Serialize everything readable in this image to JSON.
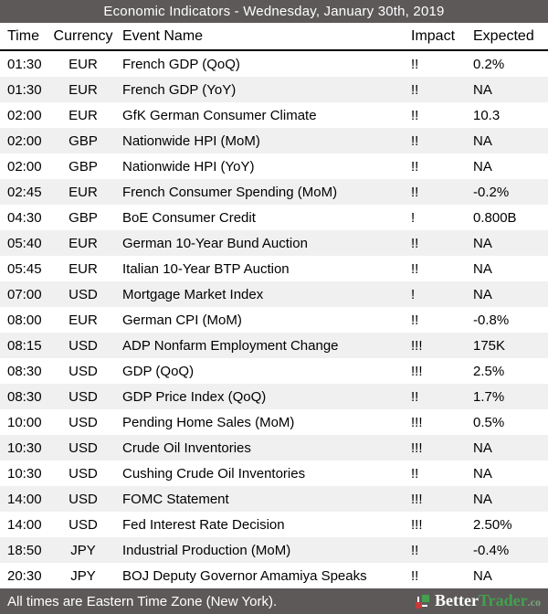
{
  "title": "Economic Indicators - Wednesday, January 30th, 2019",
  "columns": [
    "Time",
    "Currency",
    "Event Name",
    "Impact",
    "Expected"
  ],
  "rows": [
    {
      "time": "01:30",
      "currency": "EUR",
      "event": "French GDP (QoQ)",
      "impact": "!!",
      "expected": "0.2%"
    },
    {
      "time": "01:30",
      "currency": "EUR",
      "event": "French GDP (YoY)",
      "impact": "!!",
      "expected": "NA"
    },
    {
      "time": "02:00",
      "currency": "EUR",
      "event": "GfK German Consumer Climate",
      "impact": "!!",
      "expected": "10.3"
    },
    {
      "time": "02:00",
      "currency": "GBP",
      "event": "Nationwide HPI (MoM)",
      "impact": "!!",
      "expected": "NA"
    },
    {
      "time": "02:00",
      "currency": "GBP",
      "event": "Nationwide HPI (YoY)",
      "impact": "!!",
      "expected": "NA"
    },
    {
      "time": "02:45",
      "currency": "EUR",
      "event": "French Consumer Spending (MoM)",
      "impact": "!!",
      "expected": "-0.2%"
    },
    {
      "time": "04:30",
      "currency": "GBP",
      "event": "BoE Consumer Credit",
      "impact": "!",
      "expected": "0.800B"
    },
    {
      "time": "05:40",
      "currency": "EUR",
      "event": "German 10-Year Bund Auction",
      "impact": "!!",
      "expected": "NA"
    },
    {
      "time": "05:45",
      "currency": "EUR",
      "event": "Italian 10-Year BTP Auction",
      "impact": "!!",
      "expected": "NA"
    },
    {
      "time": "07:00",
      "currency": "USD",
      "event": "Mortgage Market Index",
      "impact": "!",
      "expected": "NA"
    },
    {
      "time": "08:00",
      "currency": "EUR",
      "event": "German CPI (MoM)",
      "impact": "!!",
      "expected": "-0.8%"
    },
    {
      "time": "08:15",
      "currency": "USD",
      "event": "ADP Nonfarm Employment Change",
      "impact": "!!!",
      "expected": "175K"
    },
    {
      "time": "08:30",
      "currency": "USD",
      "event": "GDP (QoQ)",
      "impact": "!!!",
      "expected": "2.5%"
    },
    {
      "time": "08:30",
      "currency": "USD",
      "event": "GDP Price Index (QoQ)",
      "impact": "!!",
      "expected": "1.7%"
    },
    {
      "time": "10:00",
      "currency": "USD",
      "event": "Pending Home Sales (MoM)",
      "impact": "!!!",
      "expected": "0.5%"
    },
    {
      "time": "10:30",
      "currency": "USD",
      "event": "Crude Oil Inventories",
      "impact": "!!!",
      "expected": "NA"
    },
    {
      "time": "10:30",
      "currency": "USD",
      "event": "Cushing Crude Oil Inventories",
      "impact": "!!",
      "expected": "NA"
    },
    {
      "time": "14:00",
      "currency": "USD",
      "event": "FOMC Statement",
      "impact": "!!!",
      "expected": "NA"
    },
    {
      "time": "14:00",
      "currency": "USD",
      "event": "Fed Interest Rate Decision",
      "impact": "!!!",
      "expected": "2.50%"
    },
    {
      "time": "18:50",
      "currency": "JPY",
      "event": "Industrial Production (MoM)",
      "impact": "!!",
      "expected": "-0.4%"
    },
    {
      "time": "20:30",
      "currency": "JPY",
      "event": "BOJ Deputy Governor Amamiya Speaks",
      "impact": "!!",
      "expected": "NA"
    }
  ],
  "footer": {
    "note": "All times are Eastern Time Zone (New York).",
    "logo": {
      "better": "Better",
      "trader": "Trader",
      "tld": ".co"
    }
  },
  "colors": {
    "bar_gray": "#5d5959",
    "row_alt_gray": "#f0f0f0",
    "brand_green": "#44a04c",
    "brand_red": "#c43b3b",
    "text_black": "#000000",
    "text_white": "#ffffff"
  }
}
